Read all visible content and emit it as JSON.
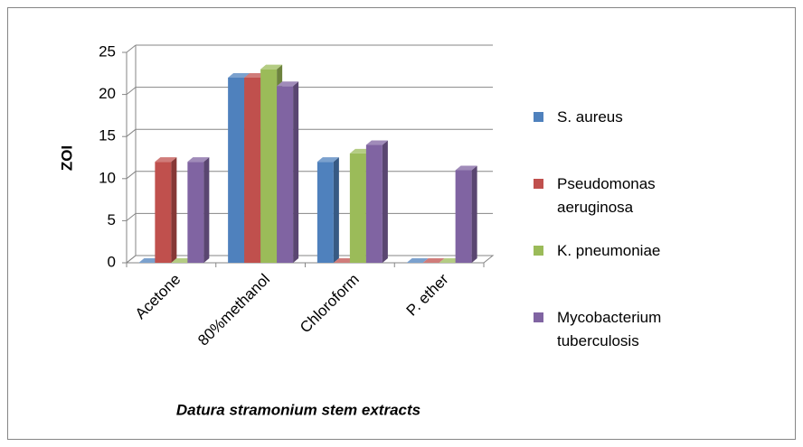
{
  "chart_data": {
    "type": "bar3d",
    "x_label": "Datura stramonium stem extracts",
    "y_label": "ZOI",
    "categories": [
      "Acetone",
      "80%methanol",
      "Chloroform",
      "P. ether"
    ],
    "series": [
      {
        "name": "S. aureus",
        "color": "#4f81bd",
        "values": [
          0,
          22,
          12,
          0
        ]
      },
      {
        "name": "Pseudomonas aeruginosa",
        "color": "#c0504d",
        "values": [
          12,
          22,
          0,
          0
        ]
      },
      {
        "name": "K. pneumoniae",
        "color": "#9bbb59",
        "values": [
          0,
          23,
          13,
          0
        ]
      },
      {
        "name": "Mycobacterium tuberculosis",
        "color": "#8064a2",
        "values": [
          12,
          21,
          14,
          11
        ]
      }
    ],
    "ylim": [
      0,
      25
    ],
    "yticks": [
      0,
      5,
      10,
      15,
      20,
      25
    ],
    "grid": true,
    "legend": "right"
  }
}
